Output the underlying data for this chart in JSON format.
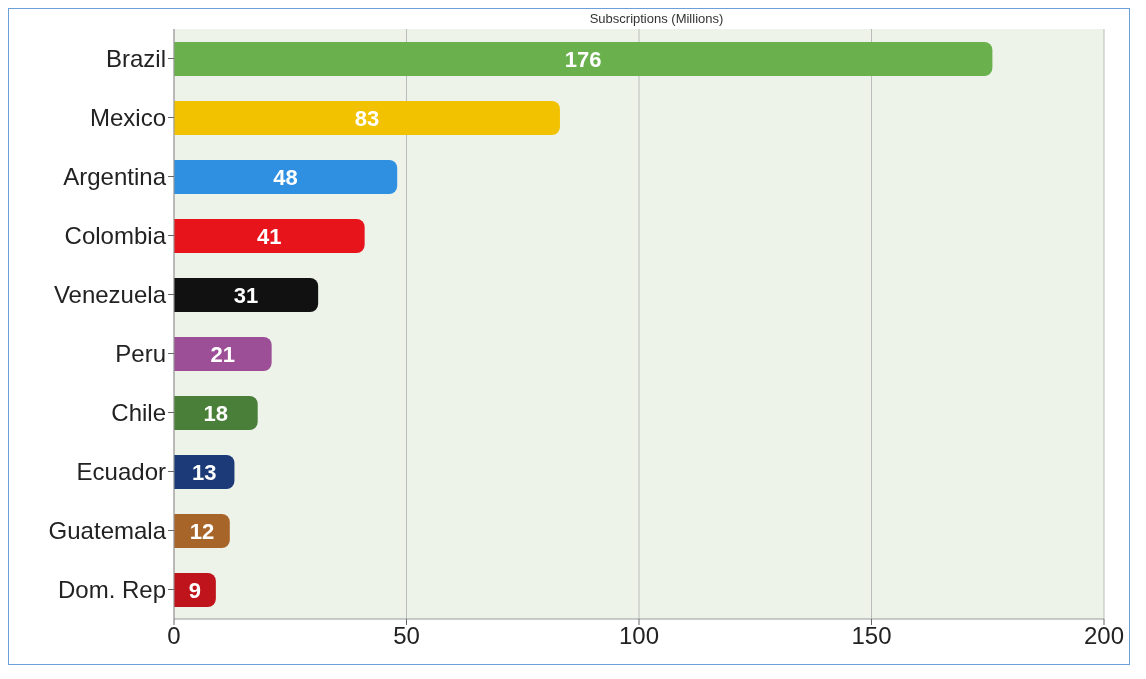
{
  "chart_data": {
    "type": "bar",
    "orientation": "horizontal",
    "title": "Subscriptions (Millions)",
    "categories": [
      "Brazil",
      "Mexico",
      "Argentina",
      "Colombia",
      "Venezuela",
      "Peru",
      "Chile",
      "Ecuador",
      "Guatemala",
      "Dom. Rep"
    ],
    "values": [
      176,
      83,
      48,
      41,
      31,
      21,
      18,
      13,
      12,
      9
    ],
    "colors": [
      "#6ab04c",
      "#f2c200",
      "#2f8fe0",
      "#e8141c",
      "#111111",
      "#9c4f96",
      "#4a7f3a",
      "#1c3a78",
      "#a8652a",
      "#c0141c"
    ],
    "xlim": [
      0,
      200
    ],
    "xticks": [
      0,
      50,
      100,
      150,
      200
    ],
    "grid": "x",
    "data_labels": true
  }
}
